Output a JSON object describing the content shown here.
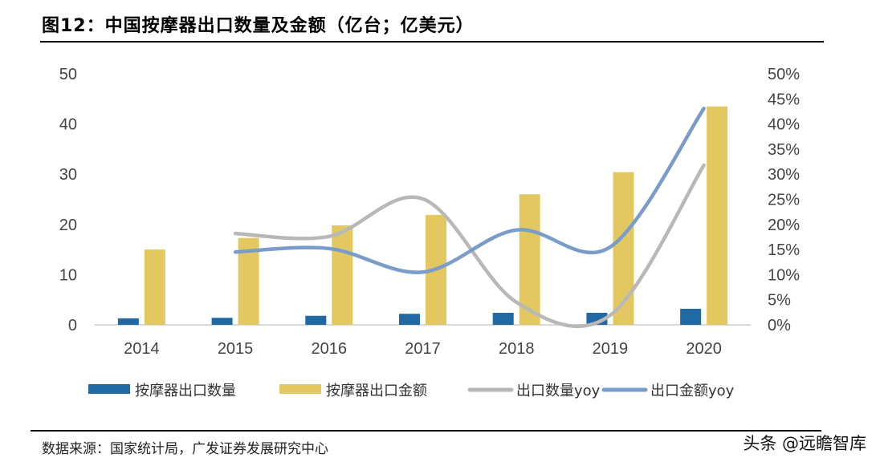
{
  "title": "图12：中国按摩器出口数量及金额（亿台；亿美元）",
  "source": "数据来源：国家统计局，广发证券发展研究中心",
  "watermark": "头条 @远瞻智库",
  "chart_data": {
    "type": "bar+line",
    "categories": [
      "2014",
      "2015",
      "2016",
      "2017",
      "2018",
      "2019",
      "2020"
    ],
    "left_axis": {
      "range": [
        0,
        50
      ],
      "ticks": [
        "0",
        "10",
        "20",
        "30",
        "40",
        "50"
      ]
    },
    "right_axis": {
      "range": [
        0,
        50
      ],
      "ticks": [
        "0%",
        "5%",
        "10%",
        "15%",
        "20%",
        "25%",
        "30%",
        "35%",
        "40%",
        "45%",
        "50%"
      ]
    },
    "grid": false,
    "legend_position": "bottom",
    "series": [
      {
        "name": "按摩器出口数量",
        "type": "bar",
        "axis": "left",
        "color": "#1f6aa5",
        "values": [
          1.3,
          1.4,
          1.8,
          2.2,
          2.4,
          2.4,
          3.2
        ]
      },
      {
        "name": "按摩器出口金额",
        "type": "bar",
        "axis": "left",
        "color": "#e3c862",
        "values": [
          15.0,
          17.3,
          19.8,
          21.9,
          26.0,
          30.4,
          43.5
        ]
      },
      {
        "name": "出口数量yoy",
        "type": "line",
        "axis": "right",
        "color": "#b8b8b8",
        "values": [
          null,
          18.2,
          17.6,
          25.1,
          4.5,
          1.9,
          31.8
        ]
      },
      {
        "name": "出口金额yoy",
        "type": "line",
        "axis": "right",
        "color": "#7a9cc9",
        "values": [
          null,
          14.5,
          15.2,
          10.5,
          18.9,
          15.5,
          43.1
        ]
      }
    ]
  }
}
